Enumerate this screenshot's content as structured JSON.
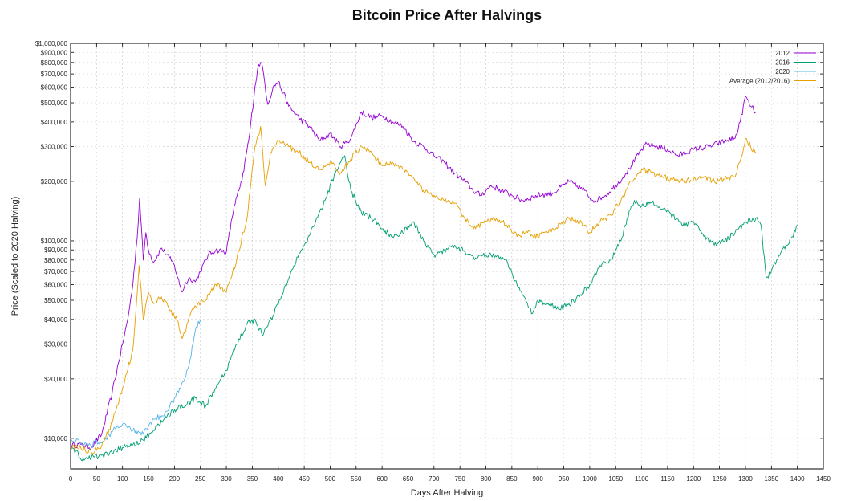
{
  "chart_data": {
    "type": "line",
    "title": "Bitcoin Price After Halvings",
    "xlabel": "Days After Halving",
    "ylabel": "Price (Scaled to 2020 Halving)",
    "xlim": [
      0,
      1450
    ],
    "ylim": [
      7000,
      1000000
    ],
    "yscale": "log",
    "grid": true,
    "legend_position": "top-right",
    "x_ticks": [
      0,
      50,
      100,
      150,
      200,
      250,
      300,
      350,
      400,
      450,
      500,
      550,
      600,
      650,
      700,
      750,
      800,
      850,
      900,
      950,
      1000,
      1050,
      1100,
      1150,
      1200,
      1250,
      1300,
      1350,
      1400,
      1450
    ],
    "y_ticks": [
      {
        "value": 10000,
        "label": "$10,000"
      },
      {
        "value": 20000,
        "label": "$20,000"
      },
      {
        "value": 30000,
        "label": "$30,000"
      },
      {
        "value": 40000,
        "label": "$40,000"
      },
      {
        "value": 50000,
        "label": "$50,000"
      },
      {
        "value": 60000,
        "label": "$60,000"
      },
      {
        "value": 70000,
        "label": "$70,000"
      },
      {
        "value": 80000,
        "label": "$80,000"
      },
      {
        "value": 90000,
        "label": "$90,000"
      },
      {
        "value": 100000,
        "label": "$100,000"
      },
      {
        "value": 200000,
        "label": "$200,000"
      },
      {
        "value": 300000,
        "label": "$300,000"
      },
      {
        "value": 400000,
        "label": "$400,000"
      },
      {
        "value": 500000,
        "label": "$500,000"
      },
      {
        "value": 600000,
        "label": "$600,000"
      },
      {
        "value": 700000,
        "label": "$700,000"
      },
      {
        "value": 800000,
        "label": "$800,000"
      },
      {
        "value": 900000,
        "label": "$900,000"
      },
      {
        "value": 1000000,
        "label": "$1,000,000"
      }
    ],
    "series": [
      {
        "name": "2012",
        "color": "#9400d3",
        "x": [
          0,
          20,
          40,
          60,
          80,
          100,
          110,
          120,
          130,
          133,
          140,
          145,
          150,
          160,
          175,
          190,
          200,
          210,
          215,
          220,
          230,
          240,
          250,
          265,
          280,
          300,
          315,
          330,
          345,
          355,
          362,
          366,
          370,
          380,
          390,
          400,
          410,
          420,
          440,
          460,
          480,
          500,
          520,
          540,
          560,
          580,
          600,
          620,
          640,
          660,
          680,
          700,
          720,
          740,
          760,
          775,
          790,
          810,
          830,
          850,
          870,
          900,
          930,
          960,
          990,
          1000,
          1010,
          1030,
          1050,
          1070,
          1080,
          1100,
          1110,
          1130,
          1150,
          1170,
          1200,
          1230,
          1260,
          1280,
          1290,
          1300,
          1310,
          1320
        ],
        "y": [
          9200,
          9300,
          9000,
          10500,
          17000,
          30000,
          40000,
          60000,
          120000,
          165000,
          80000,
          110000,
          90000,
          78000,
          92000,
          82000,
          75000,
          60000,
          55000,
          60000,
          65000,
          62000,
          70000,
          85000,
          90000,
          88000,
          150000,
          200000,
          350000,
          600000,
          780000,
          800000,
          750000,
          490000,
          600000,
          640000,
          560000,
          480000,
          420000,
          380000,
          320000,
          350000,
          300000,
          330000,
          450000,
          420000,
          430000,
          400000,
          380000,
          320000,
          300000,
          270000,
          250000,
          220000,
          200000,
          180000,
          170000,
          190000,
          180000,
          170000,
          160000,
          170000,
          175000,
          200000,
          180000,
          165000,
          160000,
          170000,
          190000,
          220000,
          240000,
          290000,
          310000,
          300000,
          290000,
          270000,
          290000,
          300000,
          320000,
          330000,
          400000,
          540000,
          480000,
          450000
        ]
      },
      {
        "name": "2016",
        "color": "#009e73",
        "x": [
          0,
          10,
          20,
          40,
          60,
          80,
          100,
          120,
          140,
          160,
          180,
          200,
          220,
          240,
          260,
          280,
          300,
          320,
          340,
          355,
          370,
          390,
          410,
          430,
          450,
          470,
          490,
          510,
          520,
          528,
          540,
          560,
          580,
          600,
          620,
          640,
          660,
          680,
          700,
          720,
          740,
          760,
          780,
          800,
          820,
          840,
          860,
          880,
          890,
          900,
          920,
          940,
          960,
          980,
          1000,
          1020,
          1040,
          1060,
          1080,
          1090,
          1100,
          1120,
          1140,
          1160,
          1180,
          1200,
          1220,
          1240,
          1260,
          1280,
          1300,
          1320,
          1330,
          1340,
          1350,
          1360,
          1370,
          1380,
          1390,
          1400
        ],
        "y": [
          9200,
          8600,
          7800,
          8000,
          8200,
          8400,
          9000,
          9300,
          9800,
          11000,
          12500,
          14000,
          14500,
          16000,
          14500,
          18000,
          22000,
          30000,
          38000,
          40000,
          33000,
          42000,
          55000,
          75000,
          95000,
          120000,
          160000,
          220000,
          250000,
          270000,
          180000,
          140000,
          130000,
          115000,
          105000,
          110000,
          125000,
          100000,
          85000,
          90000,
          95000,
          88000,
          82000,
          85000,
          83000,
          80000,
          60000,
          48000,
          43000,
          50000,
          48000,
          45000,
          48000,
          52000,
          60000,
          75000,
          80000,
          100000,
          150000,
          160000,
          150000,
          155000,
          145000,
          135000,
          120000,
          125000,
          105000,
          95000,
          100000,
          110000,
          125000,
          130000,
          120000,
          65000,
          70000,
          80000,
          90000,
          95000,
          105000,
          120000
        ]
      },
      {
        "name": "2020",
        "color": "#56b4e9",
        "x": [
          0,
          10,
          20,
          30,
          40,
          50,
          60,
          80,
          100,
          120,
          140,
          160,
          180,
          200,
          210,
          220,
          230,
          240,
          250
        ],
        "y": [
          10000,
          9700,
          9400,
          9400,
          9200,
          9700,
          9500,
          10800,
          11800,
          11000,
          10500,
          12500,
          13000,
          16000,
          18000,
          20000,
          25000,
          35000,
          40000
        ]
      },
      {
        "name": "Average (2012/2016)",
        "color": "#e69f00",
        "x": [
          0,
          20,
          40,
          60,
          80,
          100,
          120,
          132,
          140,
          150,
          160,
          175,
          190,
          205,
          215,
          220,
          230,
          245,
          260,
          280,
          300,
          320,
          340,
          355,
          366,
          370,
          375,
          385,
          400,
          420,
          440,
          460,
          480,
          500,
          520,
          540,
          560,
          580,
          600,
          620,
          640,
          660,
          680,
          700,
          720,
          740,
          760,
          780,
          800,
          820,
          840,
          860,
          880,
          900,
          930,
          960,
          990,
          1000,
          1020,
          1040,
          1060,
          1080,
          1100,
          1120,
          1140,
          1160,
          1180,
          1200,
          1220,
          1240,
          1260,
          1280,
          1295,
          1300,
          1310,
          1320
        ],
        "y": [
          9000,
          8900,
          8500,
          9200,
          12000,
          18000,
          28000,
          75000,
          40000,
          55000,
          48000,
          52000,
          45000,
          40000,
          32000,
          34000,
          42000,
          48000,
          50000,
          60000,
          55000,
          80000,
          130000,
          300000,
          380000,
          280000,
          190000,
          280000,
          320000,
          300000,
          280000,
          250000,
          230000,
          250000,
          220000,
          260000,
          300000,
          280000,
          240000,
          250000,
          230000,
          210000,
          180000,
          170000,
          160000,
          155000,
          130000,
          115000,
          125000,
          130000,
          120000,
          105000,
          110000,
          105000,
          115000,
          130000,
          120000,
          110000,
          125000,
          135000,
          160000,
          200000,
          230000,
          220000,
          210000,
          205000,
          200000,
          205000,
          210000,
          200000,
          205000,
          210000,
          280000,
          330000,
          300000,
          280000
        ]
      }
    ]
  }
}
